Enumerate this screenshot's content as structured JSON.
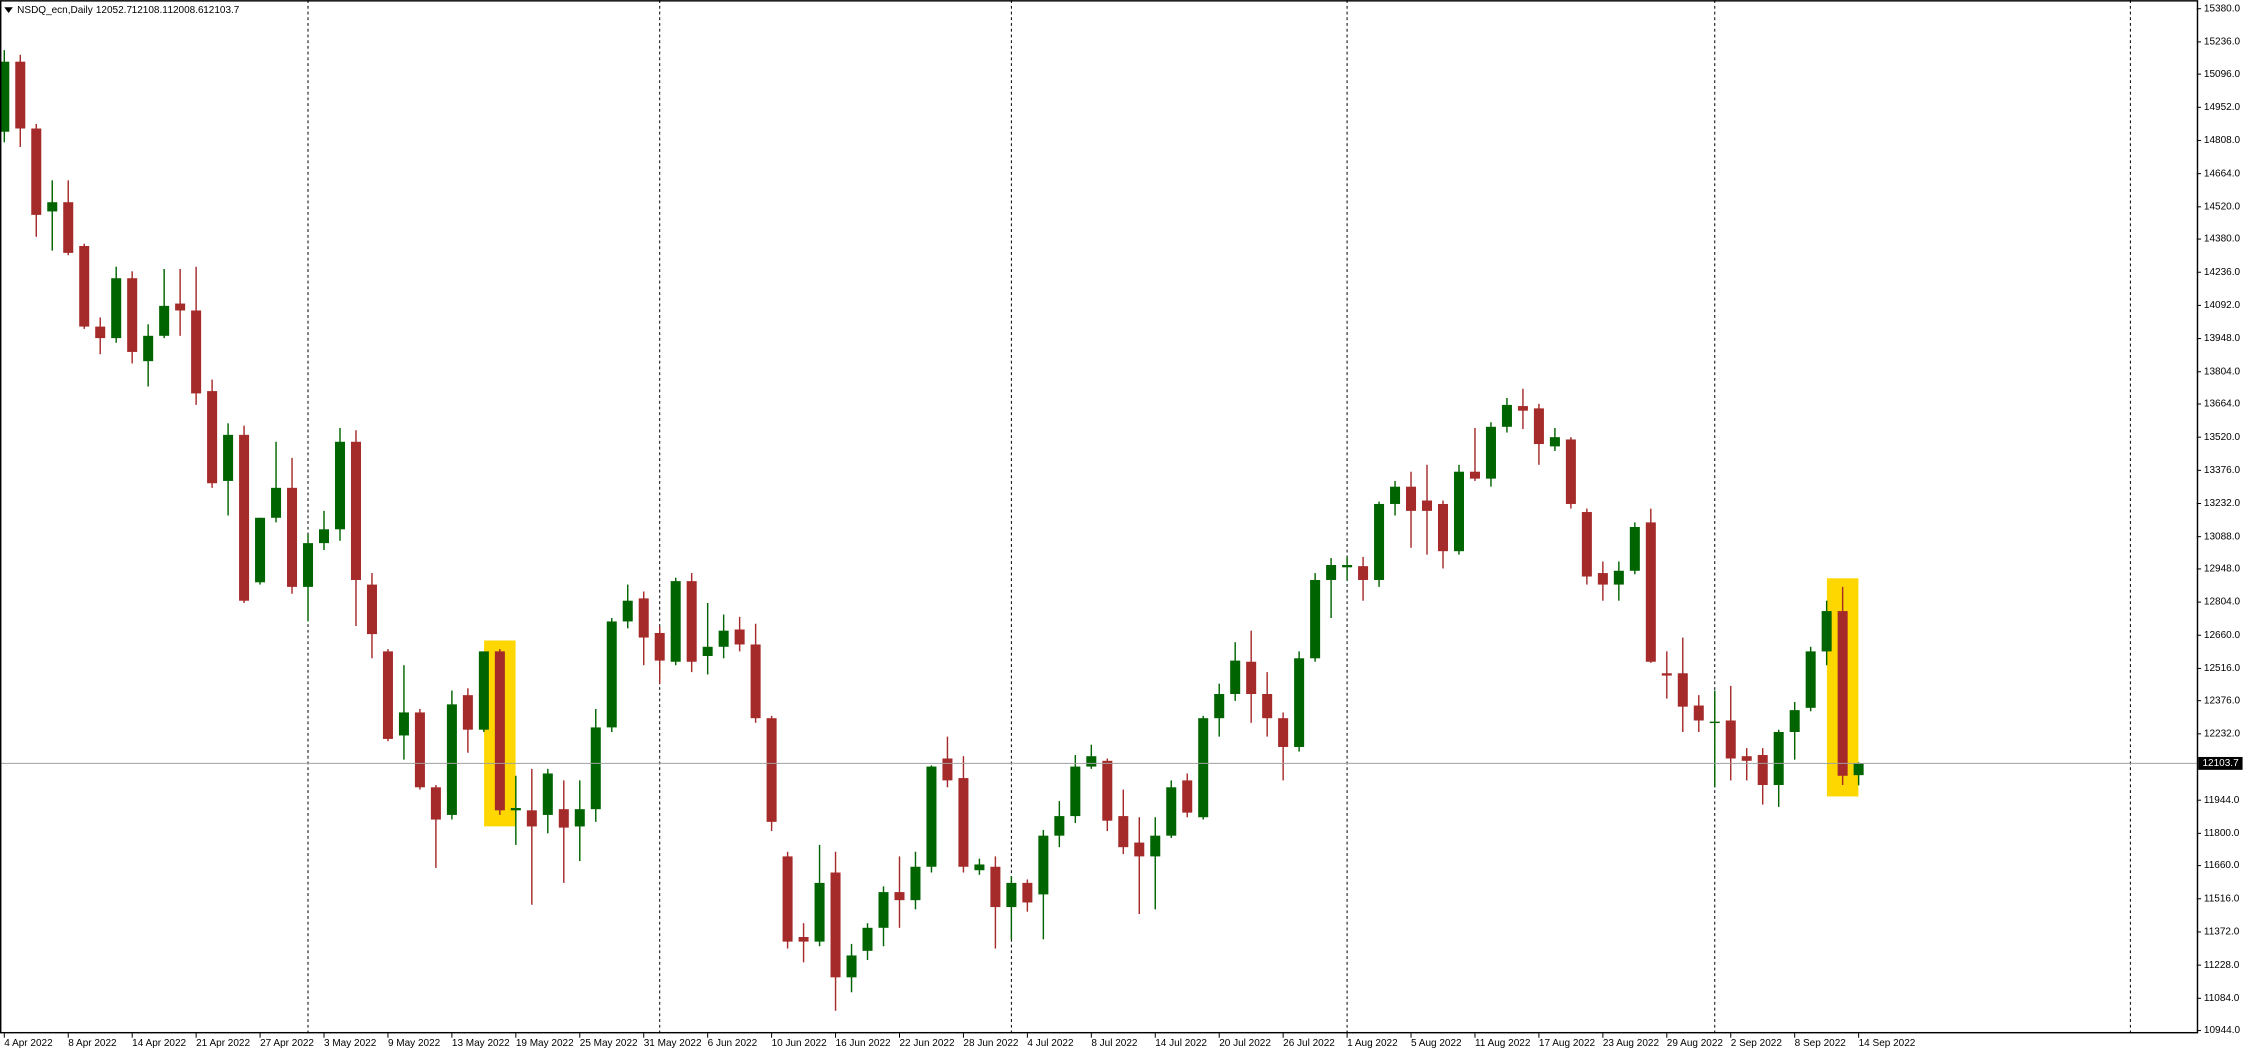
{
  "chart_data": {
    "type": "candlestick",
    "title": "NSDQ_ecn,Daily",
    "up_color": "#006400",
    "down_color": "#a52a2a",
    "highlight_color": "#ffd700",
    "highlights": [
      31,
      115
    ],
    "period_separators": [
      19,
      41,
      63,
      84,
      107,
      133
    ],
    "x": [
      "4 Apr 2022",
      null,
      null,
      null,
      "8 Apr 2022",
      null,
      null,
      null,
      "14 Apr 2022",
      null,
      null,
      null,
      "21 Apr 2022",
      null,
      null,
      null,
      "27 Apr 2022",
      null,
      null,
      null,
      "3 May 2022",
      null,
      null,
      null,
      "9 May 2022",
      null,
      null,
      null,
      "13 May 2022",
      null,
      null,
      null,
      "19 May 2022",
      null,
      null,
      null,
      "25 May 2022",
      null,
      null,
      null,
      "31 May 2022",
      null,
      null,
      null,
      "6 Jun 2022",
      null,
      null,
      null,
      "10 Jun 2022",
      null,
      null,
      null,
      "16 Jun 2022",
      null,
      null,
      null,
      "22 Jun 2022",
      null,
      null,
      null,
      "28 Jun 2022",
      null,
      null,
      null,
      "4 Jul 2022",
      null,
      null,
      null,
      "8 Jul 2022",
      null,
      null,
      null,
      "14 Jul 2022",
      null,
      null,
      null,
      "20 Jul 2022",
      null,
      null,
      null,
      "26 Jul 2022",
      null,
      null,
      null,
      "1 Aug 2022",
      null,
      null,
      null,
      "5 Aug 2022",
      null,
      null,
      null,
      "11 Aug 2022",
      null,
      null,
      null,
      "17 Aug 2022",
      null,
      null,
      null,
      "23 Aug 2022",
      null,
      null,
      null,
      "29 Aug 2022",
      null,
      null,
      null,
      "2 Sep 2022",
      null,
      null,
      null,
      "8 Sep 2022",
      null,
      null,
      null,
      "14 Sep 2022"
    ],
    "open": [
      14846,
      15150,
      14860,
      14500,
      14540,
      14350,
      14000,
      13950,
      14210,
      13850,
      13960,
      14100,
      14070,
      13720,
      13330,
      13530,
      12890,
      13170,
      13300,
      12870,
      13060,
      13120,
      13500,
      12880,
      12590,
      12225,
      12325,
      12000,
      11880,
      12400,
      12250,
      12590,
      11900,
      11900,
      11880,
      11905,
      11830,
      11905,
      12260,
      12720,
      12820,
      12670,
      12545,
      12895,
      12570,
      12610,
      12685,
      12620,
      12300,
      11700,
      11350,
      11330,
      11630,
      11175,
      11290,
      11390,
      11545,
      11510,
      11655,
      12125,
      12040,
      11640,
      11655,
      11480,
      11585,
      11535,
      11790,
      11875,
      12090,
      12115,
      11875,
      11760,
      11700,
      11790,
      12030,
      11870,
      12300,
      12405,
      12545,
      12405,
      12300,
      12175,
      12560,
      12900,
      12955,
      12960,
      12900,
      13230,
      13305,
      13245,
      13230,
      13025,
      13370,
      13340,
      13565,
      13655,
      13645,
      13480,
      13510,
      13195,
      12930,
      12880,
      12940,
      13150,
      12495,
      12495,
      12355,
      12280,
      12290,
      12135,
      12140,
      12010,
      12240,
      12345,
      12590,
      12765,
      12052.7
    ],
    "high": [
      15200,
      15180,
      14880,
      14635,
      14635,
      14360,
      14040,
      14260,
      14240,
      14010,
      14250,
      14250,
      14260,
      13770,
      13580,
      13570,
      13170,
      13500,
      13430,
      13100,
      13200,
      13560,
      13550,
      12930,
      12600,
      12530,
      12340,
      12010,
      12420,
      12430,
      12590,
      12600,
      12050,
      12080,
      12080,
      12030,
      12030,
      12340,
      12735,
      12880,
      12850,
      12700,
      12910,
      12930,
      12800,
      12750,
      12740,
      12710,
      12310,
      11720,
      11410,
      11750,
      11720,
      11320,
      11410,
      11570,
      11700,
      11720,
      12095,
      12220,
      12135,
      11690,
      11700,
      11615,
      11600,
      11815,
      11940,
      12140,
      12185,
      12125,
      11990,
      11870,
      11870,
      12030,
      12060,
      12310,
      12450,
      12630,
      12680,
      12500,
      12325,
      12590,
      12930,
      12995,
      13000,
      13000,
      13240,
      13330,
      13370,
      13400,
      13245,
      13400,
      13560,
      13585,
      13690,
      13730,
      13665,
      13560,
      13520,
      13210,
      12980,
      12980,
      13150,
      13210,
      12590,
      12650,
      12400,
      12420,
      12440,
      12170,
      12170,
      12250,
      12370,
      12610,
      12810,
      12870,
      12108.1
    ],
    "low": [
      14800,
      14780,
      14390,
      14330,
      14310,
      13990,
      13880,
      13930,
      13840,
      13740,
      13950,
      13960,
      13660,
      13300,
      13180,
      12800,
      12880,
      13150,
      12840,
      12720,
      13030,
      13070,
      12700,
      12560,
      12200,
      12120,
      11990,
      11650,
      11860,
      12150,
      12240,
      11880,
      11750,
      11490,
      11800,
      11585,
      11680,
      11850,
      12240,
      12690,
      12530,
      12450,
      12530,
      12500,
      12490,
      12560,
      12590,
      12280,
      11810,
      11300,
      11240,
      11310,
      11030,
      11110,
      11250,
      11310,
      11390,
      11470,
      11630,
      12000,
      11630,
      11620,
      11300,
      11340,
      11460,
      11340,
      11740,
      11845,
      12080,
      11810,
      11710,
      11450,
      11470,
      11780,
      11870,
      11860,
      12220,
      12375,
      12280,
      12220,
      12030,
      12155,
      12545,
      12735,
      12900,
      12810,
      12870,
      13180,
      13040,
      13010,
      12950,
      13010,
      13330,
      13305,
      13540,
      13555,
      13400,
      13460,
      13210,
      12880,
      12810,
      12810,
      12925,
      12540,
      12385,
      12240,
      12240,
      12000,
      12030,
      12030,
      11925,
      11915,
      12120,
      12330,
      12530,
      12010,
      12008.6
    ],
    "close": [
      15150,
      14860,
      14485,
      14540,
      14320,
      14000,
      13950,
      14210,
      13890,
      13960,
      14090,
      14070,
      13710,
      13320,
      13530,
      12810,
      13170,
      13300,
      12870,
      13060,
      13120,
      13500,
      12900,
      12665,
      12210,
      12325,
      12000,
      11860,
      12360,
      12250,
      12590,
      11900,
      11910,
      11830,
      12060,
      11825,
      11905,
      12260,
      12720,
      12810,
      12650,
      12550,
      12895,
      12545,
      12610,
      12680,
      12620,
      12300,
      11850,
      11330,
      11330,
      11585,
      11175,
      11270,
      11390,
      11545,
      11510,
      11655,
      12090,
      12030,
      11655,
      11665,
      11480,
      11585,
      11500,
      11790,
      11875,
      12090,
      12135,
      11855,
      11740,
      11700,
      11790,
      12000,
      11890,
      12300,
      12405,
      12550,
      12405,
      12300,
      12175,
      12560,
      12900,
      12965,
      12965,
      12900,
      13230,
      13305,
      13200,
      13200,
      13025,
      13370,
      13340,
      13565,
      13660,
      13635,
      13490,
      13520,
      13230,
      12915,
      12880,
      12940,
      13130,
      12545,
      12485,
      12350,
      12290,
      12285,
      12125,
      12115,
      12010,
      12240,
      12335,
      12590,
      12765,
      12050,
      12103.7
    ],
    "ylim": [
      10944,
      15380
    ],
    "yticks": [
      {
        "value": 15380,
        "label": "15380.0"
      },
      {
        "value": 15236,
        "label": "15236.0"
      },
      {
        "value": 15096,
        "label": "15096.0"
      },
      {
        "value": 14952,
        "label": "14952.0"
      },
      {
        "value": 14808,
        "label": "14808.0"
      },
      {
        "value": 14664,
        "label": "14664.0"
      },
      {
        "value": 14520,
        "label": "14520.0"
      },
      {
        "value": 14380,
        "label": "14380.0"
      },
      {
        "value": 14236,
        "label": "14236.0"
      },
      {
        "value": 14092,
        "label": "14092.0"
      },
      {
        "value": 13948,
        "label": "13948.0"
      },
      {
        "value": 13804,
        "label": "13804.0"
      },
      {
        "value": 13664,
        "label": "13664.0"
      },
      {
        "value": 13520,
        "label": "13520.0"
      },
      {
        "value": 13376,
        "label": "13376.0"
      },
      {
        "value": 13232,
        "label": "13232.0"
      },
      {
        "value": 13088,
        "label": "13088.0"
      },
      {
        "value": 12948,
        "label": "12948.0"
      },
      {
        "value": 12804,
        "label": "12804.0"
      },
      {
        "value": 12660,
        "label": "12660.0"
      },
      {
        "value": 12516,
        "label": "12516.0"
      },
      {
        "value": 12376,
        "label": "12376.0"
      },
      {
        "value": 12232,
        "label": "12232.0"
      },
      {
        "value": 11944,
        "label": "11944.0"
      },
      {
        "value": 11800,
        "label": "11800.0"
      },
      {
        "value": 11660,
        "label": "11660.0"
      },
      {
        "value": 11516,
        "label": "11516.0"
      },
      {
        "value": 11372,
        "label": "11372.0"
      },
      {
        "value": 11228,
        "label": "11228.0"
      },
      {
        "value": 11084,
        "label": "11084.0"
      },
      {
        "value": 10944,
        "label": "10944.0"
      }
    ]
  }
}
